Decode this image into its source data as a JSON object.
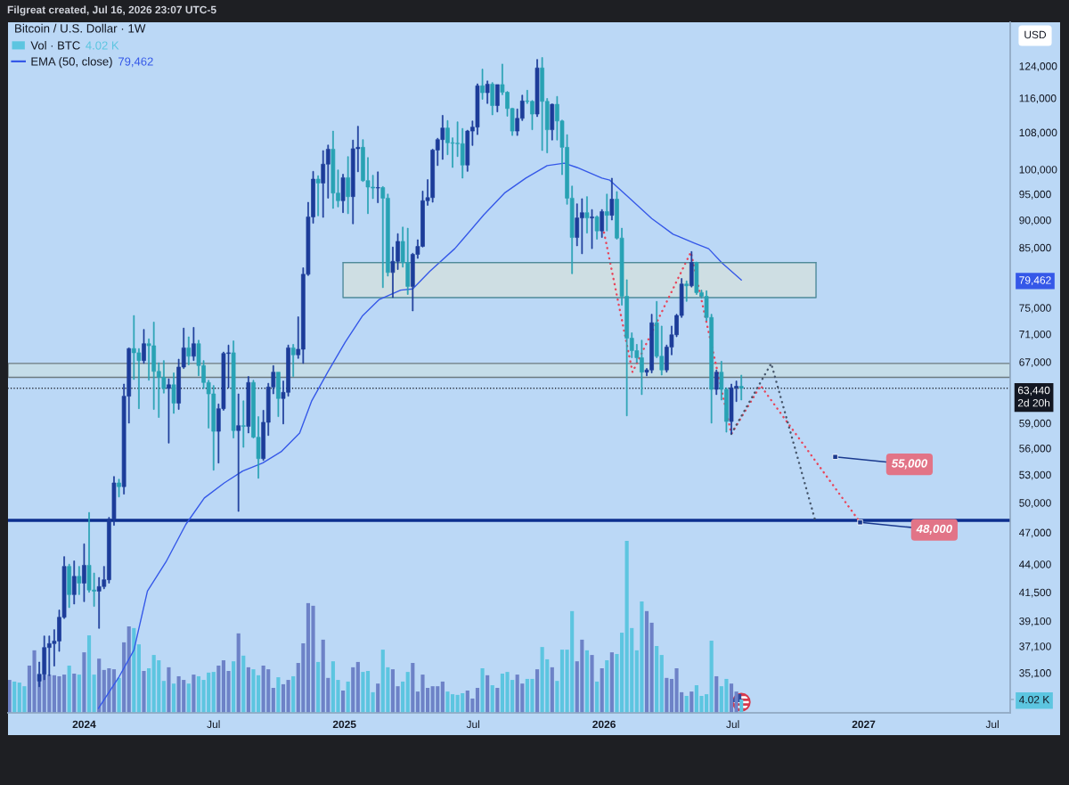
{
  "chart_data": [
    {
      "type": "candlestick",
      "title": "Bitcoin / U.S. Dollar · 1W",
      "ylabel": "USD",
      "log": "y",
      "legend": "top left",
      "xlim": [
        "2023-09-16",
        "2027-07-26"
      ],
      "xticks": [
        {
          "value": "2024-01-01",
          "label": "2024"
        },
        {
          "value": "2024-07-01",
          "label": "Jul"
        },
        {
          "value": "2025-01-01",
          "label": "2025"
        },
        {
          "value": "2025-07-01",
          "label": "Jul"
        },
        {
          "value": "2026-01-01",
          "label": "2026"
        },
        {
          "value": "2026-07-01",
          "label": "Jul"
        },
        {
          "value": "2027-01-01",
          "label": "2027"
        },
        {
          "value": "2027-07-01",
          "label": "Jul"
        }
      ],
      "ylim": [
        32300,
        135800
      ],
      "yticks": [
        {
          "value": 124000,
          "label": "124,000"
        },
        {
          "value": 116000,
          "label": "116,000"
        },
        {
          "value": 108000,
          "label": "108,000"
        },
        {
          "value": 100000,
          "label": "100,000"
        },
        {
          "value": 95000,
          "label": "95,000"
        },
        {
          "value": 90000,
          "label": "90,000"
        },
        {
          "value": 85000,
          "label": "85,000"
        },
        {
          "value": 79462,
          "label": "79,462"
        },
        {
          "value": 75000,
          "label": "75,000"
        },
        {
          "value": 71000,
          "label": "71,000"
        },
        {
          "value": 67000,
          "label": "67,000"
        },
        {
          "value": 59000,
          "label": "59,000"
        },
        {
          "value": 56000,
          "label": "56,000"
        },
        {
          "value": 53000,
          "label": "53,000"
        },
        {
          "value": 50000,
          "label": "50,000"
        },
        {
          "value": 47000,
          "label": "47,000"
        },
        {
          "value": 44000,
          "label": "44,000"
        },
        {
          "value": 41500,
          "label": "41,500"
        },
        {
          "value": 39100,
          "label": "39,100"
        },
        {
          "value": 37100,
          "label": "37,100"
        },
        {
          "value": 35100,
          "label": "35,100"
        }
      ],
      "x": [
        "2023-10-30",
        "2023-11-06",
        "2023-11-13",
        "2023-11-20",
        "2023-11-27",
        "2023-12-04",
        "2023-12-11",
        "2023-12-18",
        "2023-12-25",
        "2024-01-01",
        "2024-01-08",
        "2024-01-15",
        "2024-01-22",
        "2024-01-29",
        "2024-02-05",
        "2024-02-12",
        "2024-02-19",
        "2024-02-26",
        "2024-03-04",
        "2024-03-11",
        "2024-03-18",
        "2024-03-25",
        "2024-04-01",
        "2024-04-08",
        "2024-04-15",
        "2024-04-22",
        "2024-04-29",
        "2024-05-06",
        "2024-05-13",
        "2024-05-20",
        "2024-05-27",
        "2024-06-03",
        "2024-06-10",
        "2024-06-17",
        "2024-06-24",
        "2024-07-01",
        "2024-07-08",
        "2024-07-15",
        "2024-07-22",
        "2024-07-29",
        "2024-08-05",
        "2024-08-12",
        "2024-08-19",
        "2024-08-26",
        "2024-09-02",
        "2024-09-09",
        "2024-09-16",
        "2024-09-23",
        "2024-09-30",
        "2024-10-07",
        "2024-10-14",
        "2024-10-21",
        "2024-10-28",
        "2024-11-04",
        "2024-11-11",
        "2024-11-18",
        "2024-11-25",
        "2024-12-02",
        "2024-12-09",
        "2024-12-16",
        "2024-12-23",
        "2024-12-30",
        "2025-01-06",
        "2025-01-13",
        "2025-01-20",
        "2025-01-27",
        "2025-02-03",
        "2025-02-10",
        "2025-02-17",
        "2025-02-24",
        "2025-03-03",
        "2025-03-10",
        "2025-03-17",
        "2025-03-24",
        "2025-03-31",
        "2025-04-07",
        "2025-04-14",
        "2025-04-21",
        "2025-04-28",
        "2025-05-05",
        "2025-05-12",
        "2025-05-19",
        "2025-05-26",
        "2025-06-02",
        "2025-06-09",
        "2025-06-16",
        "2025-06-23",
        "2025-06-30",
        "2025-07-07",
        "2025-07-14",
        "2025-07-21",
        "2025-07-28",
        "2025-08-04",
        "2025-08-11",
        "2025-08-18",
        "2025-08-25",
        "2025-09-01",
        "2025-09-08",
        "2025-09-15",
        "2025-09-22",
        "2025-09-29",
        "2025-10-06",
        "2025-10-13",
        "2025-10-20",
        "2025-10-27",
        "2025-11-03",
        "2025-11-10",
        "2025-11-17",
        "2025-11-24",
        "2025-12-01",
        "2025-12-08",
        "2025-12-15",
        "2025-12-22",
        "2025-12-29",
        "2026-01-05",
        "2026-01-12",
        "2026-01-19",
        "2026-01-26",
        "2026-02-02",
        "2026-02-09",
        "2026-02-16",
        "2026-02-23",
        "2026-03-02",
        "2026-03-09",
        "2026-03-16",
        "2026-03-23",
        "2026-03-30",
        "2026-04-06",
        "2026-04-13",
        "2026-04-20",
        "2026-04-27",
        "2026-05-04",
        "2026-05-11",
        "2026-05-18",
        "2026-05-25",
        "2026-06-01",
        "2026-06-08",
        "2026-06-15",
        "2026-06-22",
        "2026-06-29",
        "2026-07-06",
        "2026-07-13"
      ],
      "ohlc": [
        [
          34500,
          35900,
          34100,
          35000
        ],
        [
          35000,
          37900,
          34600,
          37000
        ],
        [
          37000,
          37900,
          34900,
          37300
        ],
        [
          37300,
          38400,
          35600,
          37500
        ],
        [
          37500,
          40000,
          36700,
          39400
        ],
        [
          39400,
          44700,
          39300,
          43800
        ],
        [
          43800,
          44000,
          40200,
          41300
        ],
        [
          41300,
          44300,
          40500,
          42900
        ],
        [
          42900,
          43800,
          41300,
          42300
        ],
        [
          42300,
          45900,
          40700,
          43900
        ],
        [
          43900,
          49000,
          41500,
          41700
        ],
        [
          41700,
          43200,
          40300,
          41600
        ],
        [
          41600,
          42800,
          38500,
          42000
        ],
        [
          42000,
          43800,
          41800,
          42600
        ],
        [
          42600,
          48500,
          42300,
          48300
        ],
        [
          48300,
          52800,
          47700,
          52100
        ],
        [
          52100,
          52500,
          50600,
          51700
        ],
        [
          51700,
          64000,
          50900,
          62400
        ],
        [
          62400,
          69000,
          59000,
          68900
        ],
        [
          68900,
          73800,
          64600,
          68300
        ],
        [
          68300,
          68900,
          60800,
          67200
        ],
        [
          67200,
          71700,
          66800,
          69600
        ],
        [
          69600,
          70300,
          64500,
          69300
        ],
        [
          69300,
          72800,
          60700,
          65700
        ],
        [
          65700,
          66900,
          59700,
          64900
        ],
        [
          64900,
          67200,
          62800,
          63400
        ],
        [
          63400,
          64700,
          56600,
          63900
        ],
        [
          63900,
          65500,
          60200,
          61500
        ],
        [
          61500,
          67400,
          60700,
          66300
        ],
        [
          66300,
          71900,
          66100,
          69000
        ],
        [
          69000,
          70600,
          66600,
          67800
        ],
        [
          67800,
          72000,
          67200,
          69600
        ],
        [
          69600,
          70100,
          65100,
          66500
        ],
        [
          66500,
          67200,
          63400,
          64200
        ],
        [
          64200,
          64500,
          58400,
          62700
        ],
        [
          62700,
          63800,
          53500,
          58000
        ],
        [
          58000,
          61400,
          54300,
          60800
        ],
        [
          60800,
          68400,
          60600,
          68200
        ],
        [
          68200,
          69400,
          63500,
          68300
        ],
        [
          68300,
          70000,
          57200,
          58100
        ],
        [
          58100,
          62700,
          49100,
          58700
        ],
        [
          58700,
          61800,
          56100,
          58600
        ],
        [
          58600,
          65000,
          57800,
          64200
        ],
        [
          64200,
          64500,
          57200,
          57300
        ],
        [
          57300,
          59800,
          52600,
          54800
        ],
        [
          54800,
          60600,
          54600,
          59100
        ],
        [
          59100,
          64100,
          57500,
          63600
        ],
        [
          63600,
          66500,
          62700,
          65600
        ],
        [
          65600,
          65600,
          59800,
          62100
        ],
        [
          62100,
          64400,
          58900,
          62900
        ],
        [
          62900,
          69400,
          62400,
          69000
        ],
        [
          69000,
          69500,
          65000,
          68000
        ],
        [
          68000,
          73600,
          67500,
          68800
        ],
        [
          68800,
          81500,
          66800,
          80400
        ],
        [
          80400,
          93400,
          80200,
          90600
        ],
        [
          90600,
          99600,
          89400,
          98000
        ],
        [
          98000,
          98700,
          90800,
          97200
        ],
        [
          97200,
          104000,
          90500,
          101100
        ],
        [
          101100,
          105200,
          94200,
          104300
        ],
        [
          104300,
          108300,
          92200,
          95200
        ],
        [
          95200,
          99900,
          92500,
          93700
        ],
        [
          93700,
          99000,
          91400,
          98300
        ],
        [
          98300,
          102700,
          91200,
          94500
        ],
        [
          94500,
          106300,
          89300,
          104400
        ],
        [
          104400,
          109400,
          99500,
          104700
        ],
        [
          104700,
          106400,
          97500,
          97700
        ],
        [
          97700,
          102500,
          91200,
          96400
        ],
        [
          96400,
          98800,
          94100,
          96200
        ],
        [
          96200,
          99500,
          93300,
          96300
        ],
        [
          96300,
          96500,
          78200,
          94200
        ],
        [
          94200,
          95000,
          80100,
          80700
        ],
        [
          80700,
          85100,
          76600,
          82600
        ],
        [
          82600,
          87500,
          81200,
          86100
        ],
        [
          86100,
          88700,
          81600,
          82400
        ],
        [
          82400,
          88500,
          77100,
          78400
        ],
        [
          78400,
          84000,
          74500,
          83800
        ],
        [
          83800,
          86400,
          83100,
          85200
        ],
        [
          85200,
          95600,
          85100,
          93700
        ],
        [
          93700,
          97900,
          92800,
          94300
        ],
        [
          94300,
          104300,
          93400,
          104100
        ],
        [
          104100,
          106700,
          100800,
          106400
        ],
        [
          106400,
          111900,
          102100,
          109000
        ],
        [
          109000,
          110700,
          103100,
          105700
        ],
        [
          105700,
          106800,
          100400,
          105600
        ],
        [
          105600,
          110400,
          102700,
          105500
        ],
        [
          105500,
          108900,
          98200,
          100900
        ],
        [
          100900,
          108500,
          99600,
          108300
        ],
        [
          108300,
          110600,
          105100,
          109200
        ],
        [
          109200,
          119500,
          107500,
          119000
        ],
        [
          119000,
          123200,
          115700,
          117300
        ],
        [
          117300,
          120200,
          114700,
          119400
        ],
        [
          119400,
          119800,
          112000,
          114200
        ],
        [
          114200,
          119300,
          112700,
          119300
        ],
        [
          119300,
          124500,
          116800,
          117400
        ],
        [
          117400,
          117600,
          111700,
          113500
        ],
        [
          113500,
          113600,
          107300,
          108300
        ],
        [
          108300,
          113400,
          107300,
          111200
        ],
        [
          111200,
          116700,
          110700,
          115300
        ],
        [
          115300,
          117900,
          114700,
          115200
        ],
        [
          115200,
          115400,
          108600,
          112200
        ],
        [
          112200,
          125700,
          111600,
          123500
        ],
        [
          123500,
          126200,
          104000,
          115200
        ],
        [
          115200,
          115900,
          103500,
          108600
        ],
        [
          108600,
          114600,
          106300,
          114500
        ],
        [
          114500,
          116400,
          106300,
          110600
        ],
        [
          110600,
          110800,
          98900,
          104700
        ],
        [
          104700,
          107500,
          93000,
          94200
        ],
        [
          94200,
          96600,
          80500,
          86800
        ],
        [
          86800,
          93100,
          85300,
          90400
        ],
        [
          90400,
          94100,
          83900,
          91400
        ],
        [
          91400,
          94500,
          87600,
          90400
        ],
        [
          90400,
          92000,
          84800,
          90600
        ],
        [
          90600,
          90800,
          86500,
          88000
        ],
        [
          88000,
          92000,
          86800,
          91600
        ],
        [
          91600,
          95000,
          88000,
          90900
        ],
        [
          90900,
          98200,
          90000,
          94000
        ],
        [
          94000,
          95500,
          86500,
          86700
        ],
        [
          86700,
          88500,
          75400,
          76800
        ],
        [
          76800,
          79500,
          59900,
          70400
        ],
        [
          70400,
          71200,
          67600,
          68600
        ],
        [
          68600,
          69500,
          66900,
          67600
        ],
        [
          67600,
          70100,
          62600,
          65600
        ],
        [
          65600,
          66100,
          65100,
          65900
        ],
        [
          65900,
          74000,
          65500,
          72700
        ],
        [
          72700,
          76000,
          67600,
          67800
        ],
        [
          67800,
          72200,
          65200,
          65900
        ],
        [
          65900,
          69400,
          65600,
          69100
        ],
        [
          69100,
          72200,
          68000,
          70900
        ],
        [
          70900,
          74000,
          70600,
          73800
        ],
        [
          73800,
          79700,
          73500,
          78800
        ],
        [
          78800,
          79300,
          76000,
          78500
        ],
        [
          78500,
          84300,
          78300,
          82400
        ],
        [
          82400,
          82500,
          77100,
          77400
        ],
        [
          77400,
          77800,
          76500,
          76800
        ],
        [
          76800,
          77700,
          73000,
          73500
        ],
        [
          73500,
          74000,
          59000,
          63300
        ],
        [
          63300,
          65900,
          62600,
          65600
        ],
        [
          65600,
          67100,
          61900,
          63300
        ],
        [
          63300,
          63500,
          57900,
          59200
        ],
        [
          59200,
          64000,
          57700,
          63500
        ],
        [
          63500,
          64400,
          61700,
          63700
        ],
        [
          63700,
          65200,
          61900,
          63440
        ]
      ],
      "colors": [
        "#1c3c99",
        "#1c3c99",
        "#1c3c99",
        "#1c3c99",
        "#1c3c99",
        "#1c3c99",
        "#28a2b4",
        "#1c3c99",
        "#28a2b4",
        "#1c3c99",
        "#28a2b4",
        "#28a2b4",
        "#1c3c99",
        "#1c3c99",
        "#1c3c99",
        "#1c3c99",
        "#28a2b4",
        "#1c3c99",
        "#1c3c99",
        "#28a2b4",
        "#28a2b4",
        "#1c3c99",
        "#28a2b4",
        "#28a2b4",
        "#28a2b4",
        "#28a2b4",
        "#1c3c99",
        "#28a2b4",
        "#1c3c99",
        "#1c3c99",
        "#28a2b4",
        "#1c3c99",
        "#28a2b4",
        "#28a2b4",
        "#28a2b4",
        "#28a2b4",
        "#1c3c99",
        "#1c3c99",
        "#1c3c99",
        "#28a2b4",
        "#1c3c99",
        "#28a2b4",
        "#1c3c99",
        "#28a2b4",
        "#28a2b4",
        "#1c3c99",
        "#1c3c99",
        "#1c3c99",
        "#28a2b4",
        "#1c3c99",
        "#1c3c99",
        "#28a2b4",
        "#1c3c99",
        "#1c3c99",
        "#1c3c99",
        "#1c3c99",
        "#28a2b4",
        "#1c3c99",
        "#1c3c99",
        "#28a2b4",
        "#28a2b4",
        "#1c3c99",
        "#28a2b4",
        "#1c3c99",
        "#1c3c99",
        "#28a2b4",
        "#28a2b4",
        "#28a2b4",
        "#1c3c99",
        "#28a2b4",
        "#28a2b4",
        "#1c3c99",
        "#1c3c99",
        "#28a2b4",
        "#28a2b4",
        "#1c3c99",
        "#1c3c99",
        "#1c3c99",
        "#1c3c99",
        "#1c3c99",
        "#1c3c99",
        "#1c3c99",
        "#28a2b4",
        "#28a2b4",
        "#28a2b4",
        "#28a2b4",
        "#1c3c99",
        "#1c3c99",
        "#1c3c99",
        "#28a2b4",
        "#1c3c99",
        "#28a2b4",
        "#1c3c99",
        "#28a2b4",
        "#28a2b4",
        "#28a2b4",
        "#1c3c99",
        "#1c3c99",
        "#28a2b4",
        "#28a2b4",
        "#1c3c99",
        "#28a2b4",
        "#28a2b4",
        "#1c3c99",
        "#28a2b4",
        "#28a2b4",
        "#28a2b4",
        "#28a2b4",
        "#1c3c99",
        "#1c3c99",
        "#28a2b4",
        "#1c3c99",
        "#28a2b4",
        "#1c3c99",
        "#28a2b4",
        "#1c3c99",
        "#28a2b4",
        "#28a2b4",
        "#28a2b4",
        "#28a2b4",
        "#28a2b4",
        "#28a2b4",
        "#1c3c99",
        "#1c3c99",
        "#28a2b4",
        "#28a2b4",
        "#1c3c99",
        "#1c3c99",
        "#1c3c99",
        "#1c3c99",
        "#28a2b4",
        "#1c3c99",
        "#28a2b4",
        "#28a2b4",
        "#28a2b4",
        "#28a2b4",
        "#1c3c99",
        "#28a2b4",
        "#28a2b4",
        "#1c3c99",
        "#1c3c99",
        "#28a2b4"
      ],
      "series": [
        {
          "name": "EMA (50, close)",
          "type": "line",
          "color": "#3558e8",
          "x": [
            "2024-01-21",
            "2024-02-19",
            "2024-03-11",
            "2024-03-30",
            "2024-04-25",
            "2024-05-23",
            "2024-06-18",
            "2024-07-16",
            "2024-08-11",
            "2024-09-08",
            "2024-10-04",
            "2024-10-30",
            "2024-11-16",
            "2024-12-09",
            "2025-01-02",
            "2025-01-26",
            "2025-02-19",
            "2025-03-21",
            "2025-04-07",
            "2025-05-01",
            "2025-06-05",
            "2025-06-16",
            "2025-07-16",
            "2025-08-14",
            "2025-09-13",
            "2025-10-13",
            "2025-11-06",
            "2025-11-24",
            "2025-12-29",
            "2026-01-09",
            "2026-02-08",
            "2026-03-09",
            "2026-04-08",
            "2026-05-08",
            "2026-05-28",
            "2026-06-16",
            "2026-07-13"
          ],
          "values": [
            32600,
            34800,
            36800,
            41600,
            44200,
            47800,
            50500,
            52100,
            53400,
            54300,
            55600,
            57800,
            61800,
            65700,
            69800,
            73700,
            76300,
            77800,
            78000,
            80900,
            84800,
            86400,
            91000,
            95200,
            98200,
            100800,
            101300,
            100400,
            98200,
            97800,
            93900,
            90300,
            87400,
            85800,
            84800,
            82300,
            79462
          ]
        },
        {
          "type": "line",
          "color": "#e8455a",
          "line_style": "dotted",
          "x": [
            "2026-01-01",
            "2026-02-10",
            "2026-05-03",
            "2026-06-29",
            "2026-08-09",
            "2026-12-27"
          ],
          "values": [
            87700,
            65600,
            84200,
            57700,
            63800,
            48000
          ]
        },
        {
          "type": "line",
          "color": "#46566b",
          "line_style": "dotted",
          "x": [
            "2026-06-29",
            "2026-08-24",
            "2026-10-26"
          ],
          "values": [
            57700,
            66800,
            47900
          ]
        },
        {
          "type": "line",
          "color": "#4f8a9a",
          "x": [
            "2024-12-30",
            "2026-10-26"
          ],
          "values": [
            82400,
            82400
          ],
          "lower": [
            76600,
            76600
          ],
          "upper": [
            82400,
            82400
          ]
        }
      ],
      "bands": [
        {
          "axis": "y",
          "from": 64900,
          "to": 66800,
          "color": "#c5dde9"
        }
      ],
      "ref_lines": [
        {
          "axis": "y",
          "value": 48200,
          "color": "#0c2f8e",
          "line_style": "solid"
        },
        {
          "axis": "y",
          "value": 63440,
          "label": "63,440\n2d 20h",
          "color": "#131722",
          "line_style": "dotted"
        }
      ],
      "annotations": [
        "Filgreat created, Jul 16, 2026 23:07 UTC-5",
        "79,462",
        {
          "text": "55,000",
          "x": "2026-11-22",
          "y": 55000
        },
        {
          "text": "48,000",
          "x": "2026-12-27",
          "y": 48000
        }
      ]
    },
    {
      "type": "bar",
      "legend": "top left",
      "tick_labels": "y",
      "xlim": [
        "2023-09-16",
        "2027-07-26"
      ],
      "ylim": [
        0,
        207.7
      ],
      "yticks": [
        {
          "value": 4.02,
          "label": "4.02 K"
        }
      ],
      "x": [
        "2023-09-18",
        "2023-09-25",
        "2023-10-02",
        "2023-10-09",
        "2023-10-16",
        "2023-10-23",
        "2023-10-30",
        "2023-11-06",
        "2023-11-13",
        "2023-11-20",
        "2023-11-27",
        "2023-12-04",
        "2023-12-11",
        "2023-12-18",
        "2023-12-25",
        "2024-01-01",
        "2024-01-08",
        "2024-01-15",
        "2024-01-22",
        "2024-01-29",
        "2024-02-05",
        "2024-02-12",
        "2024-02-19",
        "2024-02-26",
        "2024-03-04",
        "2024-03-11",
        "2024-03-18",
        "2024-03-25",
        "2024-04-01",
        "2024-04-08",
        "2024-04-15",
        "2024-04-22",
        "2024-04-29",
        "2024-05-06",
        "2024-05-13",
        "2024-05-20",
        "2024-05-27",
        "2024-06-03",
        "2024-06-10",
        "2024-06-17",
        "2024-06-24",
        "2024-07-01",
        "2024-07-08",
        "2024-07-15",
        "2024-07-22",
        "2024-07-29",
        "2024-08-05",
        "2024-08-12",
        "2024-08-19",
        "2024-08-26",
        "2024-09-02",
        "2024-09-09",
        "2024-09-16",
        "2024-09-23",
        "2024-09-30",
        "2024-10-07",
        "2024-10-14",
        "2024-10-21",
        "2024-10-28",
        "2024-11-04",
        "2024-11-11",
        "2024-11-18",
        "2024-11-25",
        "2024-12-02",
        "2024-12-09",
        "2024-12-16",
        "2024-12-23",
        "2024-12-30",
        "2025-01-06",
        "2025-01-13",
        "2025-01-20",
        "2025-01-27",
        "2025-02-03",
        "2025-02-10",
        "2025-02-17",
        "2025-02-24",
        "2025-03-03",
        "2025-03-10",
        "2025-03-17",
        "2025-03-24",
        "2025-03-31",
        "2025-04-07",
        "2025-04-14",
        "2025-04-21",
        "2025-04-28",
        "2025-05-05",
        "2025-05-12",
        "2025-05-19",
        "2025-05-26",
        "2025-06-02",
        "2025-06-09",
        "2025-06-16",
        "2025-06-23",
        "2025-06-30",
        "2025-07-07",
        "2025-07-14",
        "2025-07-21",
        "2025-07-28",
        "2025-08-04",
        "2025-08-11",
        "2025-08-18",
        "2025-08-25",
        "2025-09-01",
        "2025-09-08",
        "2025-09-15",
        "2025-09-22",
        "2025-09-29",
        "2025-10-06",
        "2025-10-13",
        "2025-10-20",
        "2025-10-27",
        "2025-11-03",
        "2025-11-10",
        "2025-11-17",
        "2025-11-24",
        "2025-12-01",
        "2025-12-08",
        "2025-12-15",
        "2025-12-22",
        "2025-12-29",
        "2026-01-05",
        "2026-01-12",
        "2026-01-19",
        "2026-01-26",
        "2026-02-02",
        "2026-02-09",
        "2026-02-16",
        "2026-02-23",
        "2026-03-02",
        "2026-03-09",
        "2026-03-16",
        "2026-03-23",
        "2026-03-30",
        "2026-04-06",
        "2026-04-13",
        "2026-04-20",
        "2026-04-27",
        "2026-05-04",
        "2026-05-11",
        "2026-05-18",
        "2026-05-25",
        "2026-06-01",
        "2026-06-08",
        "2026-06-15",
        "2026-06-22",
        "2026-06-29",
        "2026-07-06",
        "2026-07-13"
      ],
      "series": [
        {
          "name": "Vol · BTC",
          "values": [
            9.9,
            9.4,
            9.1,
            8.0,
            14.2,
            18.8,
            11.5,
            11.5,
            11.5,
            11.3,
            11.0,
            11.5,
            14.2,
            11.8,
            11.5,
            18.2,
            23.3,
            11.5,
            16.3,
            12.9,
            13.4,
            13.1,
            10.5,
            21.2,
            26.0,
            25.5,
            20.6,
            12.6,
            13.4,
            17.4,
            15.8,
            9.6,
            13.7,
            8.8,
            11.0,
            9.9,
            8.8,
            11.5,
            11.0,
            9.9,
            12.1,
            12.3,
            14.2,
            15.8,
            12.6,
            15.5,
            23.9,
            17.2,
            13.7,
            13.1,
            11.3,
            14.2,
            13.1,
            7.5,
            10.7,
            8.6,
            9.9,
            11.0,
            15.0,
            20.9,
            33.0,
            32.2,
            15.3,
            22.0,
            10.5,
            15.5,
            9.9,
            6.7,
            9.4,
            13.7,
            15.3,
            12.3,
            12.6,
            6.2,
            8.8,
            19.0,
            13.7,
            13.1,
            8.0,
            9.4,
            12.3,
            15.0,
            6.4,
            11.5,
            7.5,
            8.0,
            8.0,
            9.4,
            6.4,
            5.6,
            5.4,
            5.9,
            6.7,
            4.3,
            7.5,
            13.4,
            11.3,
            8.3,
            7.5,
            11.8,
            12.3,
            9.9,
            11.5,
            8.8,
            10.2,
            10.2,
            13.1,
            19.8,
            16.1,
            13.7,
            9.6,
            19.0,
            19.0,
            30.6,
            15.5,
            22.0,
            18.8,
            17.4,
            9.4,
            13.4,
            15.8,
            18.2,
            17.7,
            24.1,
            51.7,
            25.5,
            18.8,
            33.5,
            30.6,
            27.1,
            20.1,
            17.4,
            10.5,
            10.2,
            13.4,
            6.2,
            5.1,
            6.4,
            8.3,
            5.1,
            5.6,
            21.7,
            11.0,
            8.0,
            10.2,
            8.8,
            6.4,
            4.02
          ],
          "colors": [
            "#6d82c7",
            "#5cc5e0",
            "#5cc5e0",
            "#5cc5e0",
            "#6d82c7",
            "#6d82c7",
            "#6d82c7",
            "#6d82c7",
            "#6d82c7",
            "#6d82c7",
            "#6d82c7",
            "#6d82c7",
            "#5cc5e0",
            "#6d82c7",
            "#5cc5e0",
            "#6d82c7",
            "#5cc5e0",
            "#5cc5e0",
            "#6d82c7",
            "#6d82c7",
            "#6d82c7",
            "#6d82c7",
            "#5cc5e0",
            "#6d82c7",
            "#6d82c7",
            "#5cc5e0",
            "#5cc5e0",
            "#6d82c7",
            "#5cc5e0",
            "#5cc5e0",
            "#5cc5e0",
            "#5cc5e0",
            "#6d82c7",
            "#5cc5e0",
            "#6d82c7",
            "#6d82c7",
            "#5cc5e0",
            "#6d82c7",
            "#5cc5e0",
            "#5cc5e0",
            "#5cc5e0",
            "#5cc5e0",
            "#6d82c7",
            "#6d82c7",
            "#6d82c7",
            "#5cc5e0",
            "#6d82c7",
            "#5cc5e0",
            "#6d82c7",
            "#5cc5e0",
            "#5cc5e0",
            "#6d82c7",
            "#6d82c7",
            "#6d82c7",
            "#5cc5e0",
            "#6d82c7",
            "#6d82c7",
            "#5cc5e0",
            "#6d82c7",
            "#6d82c7",
            "#6d82c7",
            "#6d82c7",
            "#5cc5e0",
            "#6d82c7",
            "#6d82c7",
            "#5cc5e0",
            "#5cc5e0",
            "#6d82c7",
            "#5cc5e0",
            "#6d82c7",
            "#6d82c7",
            "#5cc5e0",
            "#5cc5e0",
            "#5cc5e0",
            "#6d82c7",
            "#5cc5e0",
            "#5cc5e0",
            "#6d82c7",
            "#6d82c7",
            "#5cc5e0",
            "#5cc5e0",
            "#6d82c7",
            "#6d82c7",
            "#6d82c7",
            "#6d82c7",
            "#6d82c7",
            "#6d82c7",
            "#6d82c7",
            "#5cc5e0",
            "#5cc5e0",
            "#5cc5e0",
            "#5cc5e0",
            "#6d82c7",
            "#6d82c7",
            "#6d82c7",
            "#5cc5e0",
            "#6d82c7",
            "#5cc5e0",
            "#6d82c7",
            "#5cc5e0",
            "#5cc5e0",
            "#5cc5e0",
            "#6d82c7",
            "#6d82c7",
            "#5cc5e0",
            "#5cc5e0",
            "#6d82c7",
            "#5cc5e0",
            "#5cc5e0",
            "#6d82c7",
            "#5cc5e0",
            "#5cc5e0",
            "#5cc5e0",
            "#5cc5e0",
            "#6d82c7",
            "#6d82c7",
            "#5cc5e0",
            "#6d82c7",
            "#5cc5e0",
            "#6d82c7",
            "#5cc5e0",
            "#6d82c7",
            "#5cc5e0",
            "#5cc5e0",
            "#5cc5e0",
            "#5cc5e0",
            "#5cc5e0",
            "#5cc5e0",
            "#6d82c7",
            "#6d82c7",
            "#5cc5e0",
            "#5cc5e0",
            "#6d82c7",
            "#6d82c7",
            "#6d82c7",
            "#6d82c7",
            "#5cc5e0",
            "#6d82c7",
            "#5cc5e0",
            "#5cc5e0",
            "#5cc5e0",
            "#5cc5e0",
            "#6d82c7",
            "#5cc5e0",
            "#5cc5e0",
            "#6d82c7",
            "#6d82c7",
            "#5cc5e0"
          ]
        }
      ],
      "annotations": [
        "4.02 K"
      ]
    }
  ]
}
